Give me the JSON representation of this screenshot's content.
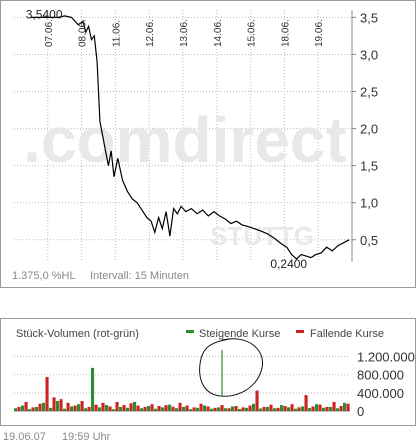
{
  "price_panel": {
    "watermark_brand": ".comdirect",
    "watermark_exchange": "STUTTG",
    "footer_left": "1.375,0 %HL",
    "footer_interval": "Intervall: 15 Minuten"
  },
  "volume_panel": {
    "title": "Stück-Volumen (rot-grün)",
    "legend": [
      {
        "label": "Steigende Kurse",
        "color": "#2e8b2e"
      },
      {
        "label": "Fallende Kurse",
        "color": "#cc2222"
      }
    ]
  },
  "footer": {
    "date": "19.06.07",
    "time": "19:59 Uhr"
  },
  "colors": {
    "price_line": "#000000",
    "up": "#2e8b2e",
    "down": "#cc2222",
    "grid": "#bbbbbb",
    "annotation": "#111111"
  },
  "chart_data": [
    {
      "type": "line",
      "x_tick_labels": [
        "07.06.",
        "08.06.",
        "11.06.",
        "12.06.",
        "13.06.",
        "14.06.",
        "15.06.",
        "18.06.",
        "19.06."
      ],
      "y_tick_labels": [
        "3,5",
        "3,0",
        "2,5",
        "2,0",
        "1,5",
        "1,0",
        "0,5"
      ],
      "ylim": [
        0.2,
        3.6
      ],
      "grid": true,
      "annotations": [
        {
          "label": "3,5400",
          "x": "07.06.",
          "y": 3.54
        },
        {
          "label": "0,2400",
          "x": "18.06.",
          "y": 0.24
        }
      ],
      "series": [
        {
          "x": [
            "06.06.",
            "07.06.",
            "07.06.",
            "07.06.",
            "07.06.",
            "07.06.",
            "08.06.",
            "08.06.",
            "08.06.",
            "08.06.",
            "08.06.",
            "08.06.",
            "08.06.",
            "08.06.",
            "08.06.",
            "08.06.",
            "08.06.",
            "08.06.",
            "11.06.",
            "11.06.",
            "11.06.",
            "11.06.",
            "11.06.",
            "11.06.",
            "11.06.",
            "12.06.",
            "12.06.",
            "12.06.",
            "12.06.",
            "12.06.",
            "12.06.",
            "12.06.",
            "12.06.",
            "12.06.",
            "13.06.",
            "13.06.",
            "13.06.",
            "13.06.",
            "13.06.",
            "13.06.",
            "14.06.",
            "14.06.",
            "14.06.",
            "14.06.",
            "14.06.",
            "14.06.",
            "15.06.",
            "15.06.",
            "15.06.",
            "15.06.",
            "15.06.",
            "18.06.",
            "18.06.",
            "18.06.",
            "18.06.",
            "18.06.",
            "18.06.",
            "18.06.",
            "19.06.",
            "19.06.",
            "19.06.",
            "19.06.",
            "19.06.",
            "19.06."
          ],
          "y": [
            3.5,
            3.5,
            3.5,
            3.52,
            3.5,
            3.4,
            3.45,
            3.3,
            3.38,
            3.2,
            3.25,
            2.9,
            2.1,
            1.9,
            1.7,
            1.5,
            1.7,
            1.35,
            1.6,
            1.3,
            1.15,
            1.05,
            1.0,
            0.9,
            0.8,
            0.75,
            0.6,
            0.8,
            0.65,
            0.88,
            0.55,
            0.92,
            0.85,
            0.95,
            0.88,
            0.92,
            0.85,
            0.9,
            0.82,
            0.88,
            0.82,
            0.78,
            0.72,
            0.75,
            0.7,
            0.68,
            0.65,
            0.62,
            0.58,
            0.52,
            0.45,
            0.4,
            0.3,
            0.24,
            0.3,
            0.28,
            0.26,
            0.3,
            0.32,
            0.4,
            0.35,
            0.42,
            0.46,
            0.5
          ]
        }
      ]
    },
    {
      "type": "bar",
      "title": "Stück-Volumen (rot-grün)",
      "y_tick_labels": [
        "1.200.000",
        "800.000",
        "400.000",
        "0"
      ],
      "ylim": [
        0,
        1300000
      ],
      "series": [
        {
          "name": "Steigende Kurse",
          "values": [
            60000,
            120000,
            40000,
            90000,
            180000,
            70000,
            220000,
            50000,
            100000,
            150000,
            60000,
            950000,
            80000,
            130000,
            40000,
            90000,
            70000,
            200000,
            60000,
            110000,
            50000,
            80000,
            140000,
            60000,
            90000,
            40000,
            70000,
            120000,
            50000,
            80000,
            60000,
            100000,
            45000,
            70000,
            160000,
            55000,
            90000,
            60000,
            130000,
            80000,
            50000,
            100000,
            65000,
            150000,
            70000,
            90000,
            60000,
            180000
          ]
        },
        {
          "name": "Fallende Kurse",
          "values": [
            90000,
            200000,
            80000,
            160000,
            750000,
            300000,
            260000,
            180000,
            120000,
            220000,
            90000,
            140000,
            180000,
            100000,
            200000,
            130000,
            170000,
            120000,
            90000,
            150000,
            110000,
            130000,
            95000,
            180000,
            120000,
            80000,
            160000,
            100000,
            70000,
            130000,
            60000,
            110000,
            80000,
            120000,
            450000,
            90000,
            140000,
            70000,
            110000,
            150000,
            80000,
            350000,
            100000,
            140000,
            90000,
            200000,
            110000,
            160000
          ]
        }
      ]
    }
  ]
}
